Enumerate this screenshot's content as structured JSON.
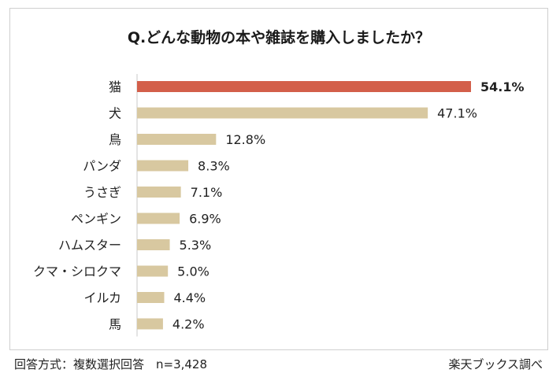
{
  "chart_data": {
    "type": "bar",
    "orientation": "horizontal",
    "title": "Q.どんな動物の本や雑誌を購入しましたか？",
    "categories": [
      "猫",
      "犬",
      "鳥",
      "パンダ",
      "うさぎ",
      "ペンギン",
      "ハムスター",
      "クマ・シロクマ",
      "イルカ",
      "馬"
    ],
    "values": [
      54.1,
      47.1,
      12.8,
      8.3,
      7.1,
      6.9,
      5.3,
      5.0,
      4.4,
      4.2
    ],
    "value_labels": [
      "54.1%",
      "47.1%",
      "12.8%",
      "8.3%",
      "7.1%",
      "6.9%",
      "5.3%",
      "5.0%",
      "4.4%",
      "4.2%"
    ],
    "unit": "%",
    "xlim": [
      0,
      54.1
    ],
    "highlight_index": 0,
    "colors": {
      "highlight": "#d35f4a",
      "default": "#d8c8a0",
      "axis": "#c8c8c8"
    },
    "grid": false
  },
  "footer": {
    "method": "回答方式：複数選択回答　n=3,428",
    "source": "楽天ブックス調べ"
  }
}
